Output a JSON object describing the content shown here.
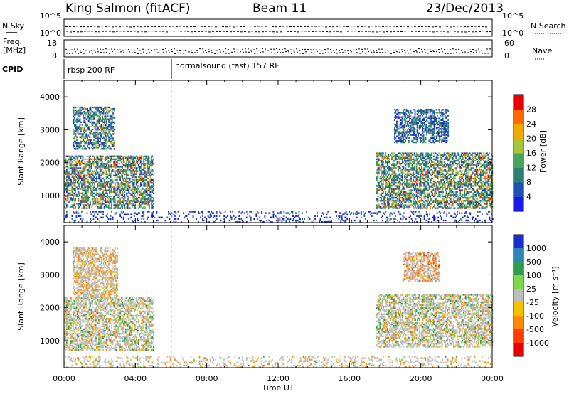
{
  "header": {
    "station": "King Salmon (fitACF)",
    "beam": "Beam 11",
    "date": "23/Dec/2013"
  },
  "aux_panel": {
    "left_labels": {
      "nsky": "N.Sky",
      "freq_line1": "Freq.",
      "freq_line2": "[MHz]",
      "cpid": "CPID"
    },
    "right_labels": {
      "nsearch": "N.Search",
      "nave": "Nave"
    },
    "noise_left_ticks": [
      "10^5",
      "10^0"
    ],
    "noise_right_ticks": [
      "10^5",
      "10^0"
    ],
    "freq_ticks": [
      "18",
      "8"
    ],
    "nave_ticks": [
      "60",
      "0"
    ],
    "cpid_segments": [
      {
        "label": "rbsp 200 RF",
        "start_hour": 0,
        "end_hour": 6
      },
      {
        "label": "normalsound (fast) 157 RF",
        "start_hour": 6,
        "end_hour": 24
      }
    ]
  },
  "x_axis": {
    "label": "Time UT",
    "tick_labels": [
      "00:00",
      "04:00",
      "08:00",
      "12:00",
      "16:00",
      "20:00",
      "00:00"
    ]
  },
  "colors": {
    "frame": "#000000",
    "power_scale": [
      "#1a1ae6",
      "#1e4fb4",
      "#2f7f73",
      "#4aa35a",
      "#a7c638",
      "#f2a900",
      "#ff6a00",
      "#e60000"
    ],
    "velocity_scale": [
      "#1a2fc9",
      "#2e86b8",
      "#2f9c4f",
      "#7fd84a",
      "#bdbdbd",
      "#f2c300",
      "#ff8a00",
      "#ff3b00",
      "#e60000"
    ]
  },
  "chart_data": [
    {
      "type": "heatmap",
      "title": "",
      "xlabel": "",
      "ylabel": "Slant Range [km]",
      "xlim": [
        0,
        24
      ],
      "ylim": [
        180,
        4500
      ],
      "yticks": [
        1000,
        2000,
        3000,
        4000
      ],
      "colorbar": {
        "label": "Power [dB]",
        "range": [
          0,
          32
        ],
        "ticks": [
          4,
          8,
          12,
          16,
          20,
          24,
          28
        ]
      },
      "echo_regions": [
        {
          "start_hour": 0.0,
          "end_hour": 5.0,
          "range_min_km": 600,
          "range_max_km": 2200,
          "typical_power_db": 12,
          "peak_power_db": 28
        },
        {
          "start_hour": 0.5,
          "end_hour": 2.8,
          "range_min_km": 2400,
          "range_max_km": 3700,
          "typical_power_db": 10,
          "peak_power_db": 24
        },
        {
          "start_hour": 0.0,
          "end_hour": 24.0,
          "range_min_km": 180,
          "range_max_km": 500,
          "typical_power_db": 4,
          "peak_power_db": 12
        },
        {
          "start_hour": 17.5,
          "end_hour": 24.0,
          "range_min_km": 600,
          "range_max_km": 2300,
          "typical_power_db": 14,
          "peak_power_db": 28
        },
        {
          "start_hour": 18.5,
          "end_hour": 21.5,
          "range_min_km": 2600,
          "range_max_km": 3600,
          "typical_power_db": 10,
          "peak_power_db": 16
        }
      ]
    },
    {
      "type": "heatmap",
      "title": "",
      "xlabel": "Time UT",
      "ylabel": "Slant Range [km]",
      "xlim": [
        0,
        24
      ],
      "ylim": [
        180,
        4500
      ],
      "yticks": [
        1000,
        2000,
        3000,
        4000
      ],
      "colorbar": {
        "label": "Velocity [m s⁻¹]",
        "tick_labels": [
          "1000",
          "500",
          "100",
          "25",
          "-25",
          "-100",
          "-500",
          "-1000"
        ]
      },
      "echo_regions": [
        {
          "start_hour": 0.0,
          "end_hour": 5.0,
          "range_min_km": 700,
          "range_max_km": 2300,
          "typical_velocity_ms": 0
        },
        {
          "start_hour": 0.5,
          "end_hour": 3.0,
          "range_min_km": 2300,
          "range_max_km": 3800,
          "typical_velocity_ms": -200
        },
        {
          "start_hour": 0.0,
          "end_hour": 24.0,
          "range_min_km": 180,
          "range_max_km": 500,
          "typical_velocity_ms": -150
        },
        {
          "start_hour": 17.5,
          "end_hour": 24.0,
          "range_min_km": 800,
          "range_max_km": 2400,
          "typical_velocity_ms": 0
        },
        {
          "start_hour": 19.0,
          "end_hour": 21.0,
          "range_min_km": 2800,
          "range_max_km": 3700,
          "typical_velocity_ms": -300
        }
      ]
    }
  ]
}
